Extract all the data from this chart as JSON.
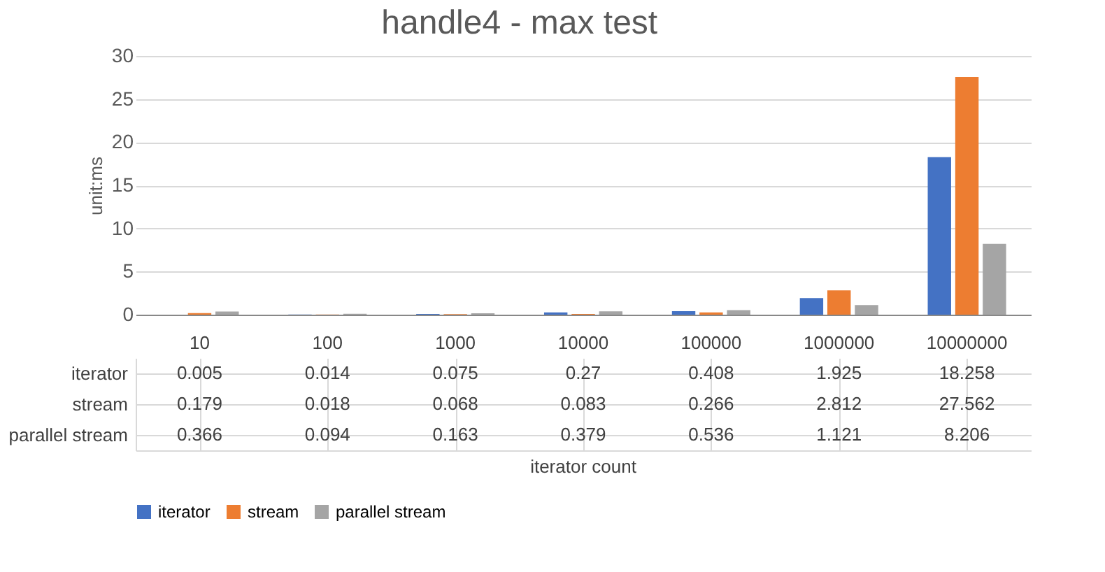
{
  "chart_data": {
    "type": "bar",
    "title": "handle4 - max test",
    "annotations": [
      "iterator count"
    ],
    "ylabel": "unit:ms",
    "categories": [
      "10",
      "100",
      "1000",
      "10000",
      "100000",
      "1000000",
      "10000000"
    ],
    "series": [
      {
        "name": "iterator",
        "color": "#4472c4",
        "values": [
          0.005,
          0.014,
          0.075,
          0.27,
          0.408,
          1.925,
          18.258
        ]
      },
      {
        "name": "stream",
        "color": "#ed7d31",
        "values": [
          0.179,
          0.018,
          0.068,
          0.083,
          0.266,
          2.812,
          27.562
        ]
      },
      {
        "name": "parallel stream",
        "color": "#a5a5a5",
        "values": [
          0.366,
          0.094,
          0.163,
          0.379,
          0.536,
          1.121,
          8.206
        ]
      }
    ],
    "ylim": [
      0,
      30
    ],
    "yticks": [
      0,
      5,
      10,
      15,
      20,
      25,
      30
    ],
    "grid": "y",
    "legend": "bottom",
    "data_labels": true
  }
}
